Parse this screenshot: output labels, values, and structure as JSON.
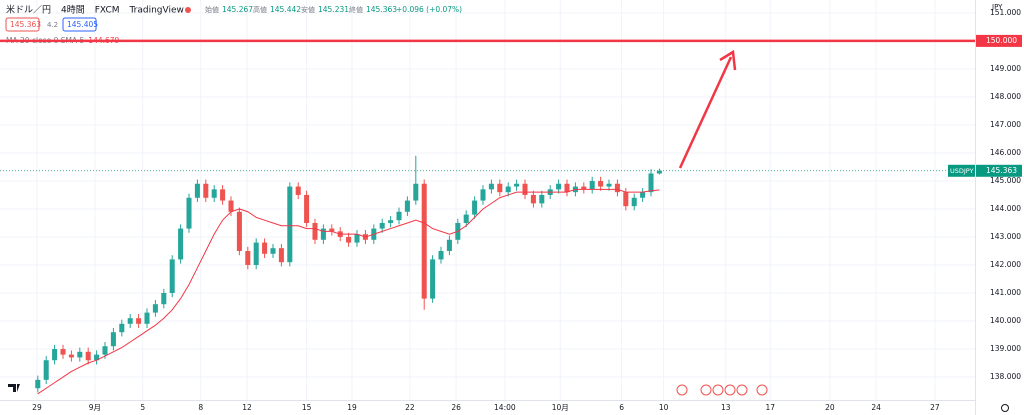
{
  "header": {
    "symbol": "米ドル／円",
    "interval": "4時間",
    "source": "FXCM",
    "platform": "TradingView",
    "ohlc": [
      {
        "label": "始値",
        "value": "145.267"
      },
      {
        "label": "高値",
        "value": "145.442"
      },
      {
        "label": "安値",
        "value": "145.231"
      },
      {
        "label": "終値",
        "value": "145.363"
      }
    ],
    "change": "+0.096 (+0.07%)"
  },
  "quote": {
    "sell": "145.363",
    "spread": "4.2",
    "buy": "145.405"
  },
  "chart_data": {
    "type": "candlestick",
    "currency": "JPY",
    "up_color": "#26a69a",
    "down_color": "#ef5350",
    "grid": true,
    "x": [
      4.5,
      5.5,
      6.5,
      7.5,
      8.5,
      9.5,
      10.5,
      11.5,
      12.5,
      13.5,
      14.5,
      15.5,
      16.5,
      17.5,
      18.5,
      19.5,
      20.5,
      21.5,
      22.5,
      23.5,
      24.5,
      25.5,
      26.5,
      27.5,
      28.5,
      29.5,
      30.5,
      31.5,
      32.5,
      33.5,
      34.5,
      35.5,
      36.5,
      37.5,
      38.5,
      39.5,
      40.5,
      41.5,
      42.5,
      43.5,
      44.5,
      45.5,
      46.5,
      47.5,
      48.5,
      49.5,
      50.5,
      51.5,
      52.5,
      53.5,
      54.5,
      55.5,
      56.5,
      57.5,
      58.5,
      59.5,
      60.5,
      61.5,
      62.5,
      63.5,
      64.5,
      65.5,
      66.5,
      67.5,
      68.5,
      69.5,
      70.5,
      71.5,
      72.5,
      73.5,
      74.5,
      75.5,
      76.5,
      77.5,
      78.5
    ],
    "open": [
      137.6,
      137.9,
      138.6,
      139.0,
      138.8,
      138.7,
      138.9,
      138.6,
      138.8,
      139.1,
      139.6,
      139.9,
      140.1,
      139.9,
      140.3,
      140.6,
      141.0,
      142.2,
      143.3,
      144.4,
      144.9,
      144.4,
      144.7,
      144.3,
      143.9,
      142.5,
      142.0,
      142.8,
      142.4,
      142.6,
      142.1,
      144.8,
      144.5,
      143.5,
      142.9,
      143.3,
      143.2,
      143.0,
      142.8,
      143.1,
      142.9,
      143.3,
      143.5,
      143.6,
      143.9,
      144.3,
      144.9,
      140.8,
      142.2,
      142.5,
      142.9,
      143.5,
      143.8,
      144.3,
      144.7,
      144.9,
      144.6,
      144.8,
      144.9,
      144.5,
      144.2,
      144.5,
      144.7,
      144.9,
      144.6,
      144.8,
      144.7,
      145.0,
      144.8,
      144.9,
      144.6,
      144.1,
      144.4,
      144.6,
      145.267
    ],
    "high": [
      138.05,
      138.75,
      139.15,
      139.15,
      138.95,
      139.05,
      139.05,
      138.95,
      139.25,
      139.75,
      140.05,
      140.25,
      140.25,
      140.45,
      140.75,
      141.15,
      142.35,
      143.45,
      144.55,
      145.05,
      145.05,
      144.85,
      144.85,
      144.45,
      144.05,
      142.65,
      142.95,
      142.95,
      142.75,
      142.75,
      144.95,
      144.95,
      144.65,
      143.65,
      143.45,
      143.45,
      143.35,
      143.15,
      143.25,
      143.25,
      143.45,
      143.65,
      143.75,
      144.05,
      144.45,
      145.9,
      145.05,
      142.35,
      142.65,
      143.05,
      143.65,
      143.95,
      144.45,
      144.85,
      145.05,
      145.05,
      144.95,
      145.05,
      145.05,
      144.65,
      144.65,
      144.85,
      145.05,
      145.05,
      144.95,
      144.95,
      145.15,
      145.15,
      145.05,
      145.05,
      144.75,
      144.55,
      144.75,
      145.417,
      145.442
    ],
    "low": [
      137.45,
      137.75,
      138.45,
      138.65,
      138.55,
      138.55,
      138.45,
      138.45,
      138.65,
      138.95,
      139.45,
      139.75,
      139.75,
      139.75,
      140.15,
      140.45,
      140.85,
      142.05,
      143.15,
      144.25,
      144.25,
      144.25,
      144.15,
      143.75,
      142.35,
      141.85,
      141.85,
      142.25,
      142.25,
      141.95,
      141.95,
      144.35,
      143.35,
      142.75,
      142.75,
      143.05,
      142.85,
      142.65,
      142.65,
      142.75,
      142.75,
      143.15,
      143.35,
      143.45,
      143.75,
      144.15,
      140.4,
      140.65,
      142.05,
      142.35,
      142.75,
      143.35,
      143.65,
      144.15,
      144.55,
      144.45,
      144.45,
      144.65,
      144.35,
      144.05,
      144.05,
      144.35,
      144.55,
      144.45,
      144.45,
      144.55,
      144.55,
      144.65,
      144.65,
      144.45,
      143.95,
      143.95,
      144.25,
      144.45,
      145.231
    ],
    "close": [
      137.9,
      138.6,
      139.0,
      138.8,
      138.7,
      138.9,
      138.6,
      138.8,
      139.1,
      139.6,
      139.9,
      140.1,
      139.9,
      140.3,
      140.6,
      141.0,
      142.2,
      143.3,
      144.4,
      144.9,
      144.4,
      144.7,
      144.3,
      143.9,
      142.5,
      142.0,
      142.8,
      142.4,
      142.6,
      142.1,
      144.8,
      144.5,
      143.5,
      142.9,
      143.3,
      143.2,
      143.0,
      142.8,
      143.1,
      142.9,
      143.3,
      143.5,
      143.6,
      143.9,
      144.3,
      144.9,
      140.8,
      142.2,
      142.5,
      142.9,
      143.5,
      143.8,
      144.3,
      144.7,
      144.9,
      144.6,
      144.8,
      144.9,
      144.5,
      144.2,
      144.5,
      144.7,
      144.9,
      144.6,
      144.8,
      144.7,
      145.0,
      144.8,
      144.9,
      144.6,
      144.1,
      144.4,
      144.6,
      145.267,
      145.363
    ],
    "series": [
      {
        "name": "MA 20 close 0 SMA 5",
        "color": "#f23645",
        "values": [
          137.4,
          137.6,
          137.8,
          138.0,
          138.2,
          138.35,
          138.5,
          138.6,
          138.75,
          138.9,
          139.05,
          139.25,
          139.45,
          139.65,
          139.85,
          140.1,
          140.4,
          140.8,
          141.3,
          141.9,
          142.5,
          143.1,
          143.6,
          143.9,
          144.0,
          143.9,
          143.7,
          143.6,
          143.5,
          143.4,
          143.4,
          143.4,
          143.3,
          143.3,
          143.2,
          143.2,
          143.1,
          143.1,
          143.1,
          143.0,
          143.1,
          143.2,
          143.3,
          143.4,
          143.5,
          143.6,
          143.5,
          143.3,
          143.2,
          143.1,
          143.2,
          143.4,
          143.7,
          144.0,
          144.2,
          144.4,
          144.5,
          144.6,
          144.6,
          144.6,
          144.6,
          144.6,
          144.6,
          144.6,
          144.7,
          144.7,
          144.7,
          144.7,
          144.7,
          144.7,
          144.6,
          144.6,
          144.6,
          144.65,
          144.679
        ]
      }
    ],
    "hline": {
      "value": 150,
      "label": "150.000",
      "color": "#f23645"
    },
    "last_price": {
      "symbol": "USDJPY",
      "value": 145.363,
      "label": "145.363",
      "color": "#089981"
    },
    "xlim": [
      0,
      116.07
    ],
    "xticks": [
      {
        "value": 4.4,
        "label": "29"
      },
      {
        "value": 11.3,
        "label": "9月"
      },
      {
        "value": 17,
        "label": "5"
      },
      {
        "value": 23.9,
        "label": "8"
      },
      {
        "value": 29.4,
        "label": "12"
      },
      {
        "value": 36.5,
        "label": "15"
      },
      {
        "value": 41.9,
        "label": "19"
      },
      {
        "value": 48.8,
        "label": "22"
      },
      {
        "value": 54.3,
        "label": "26"
      },
      {
        "value": 60.1,
        "label": "14:00"
      },
      {
        "value": 66.7,
        "label": "10月"
      },
      {
        "value": 74,
        "label": "6"
      },
      {
        "value": 79,
        "label": "10"
      },
      {
        "value": 86.4,
        "label": "13"
      },
      {
        "value": 91.7,
        "label": "17"
      },
      {
        "value": 98.8,
        "label": "20"
      },
      {
        "value": 104.3,
        "label": "24"
      },
      {
        "value": 111.3,
        "label": "27"
      }
    ],
    "ylim": [
      137.18,
      151.46
    ],
    "yticks": [
      {
        "value": 151,
        "label": "151.000"
      },
      {
        "value": 150,
        "label": "150.000"
      },
      {
        "value": 149,
        "label": "149.000"
      },
      {
        "value": 148,
        "label": "148.000"
      },
      {
        "value": 147,
        "label": "147.000"
      },
      {
        "value": 146,
        "label": "146.000"
      },
      {
        "value": 145,
        "label": "145.000"
      },
      {
        "value": 144,
        "label": "144.000"
      },
      {
        "value": 143,
        "label": "143.000"
      },
      {
        "value": 142,
        "label": "142.000"
      },
      {
        "value": 141,
        "label": "141.000"
      },
      {
        "value": 140,
        "label": "140.000"
      },
      {
        "value": 139,
        "label": "139.000"
      },
      {
        "value": 138,
        "label": "138.000"
      }
    ]
  }
}
